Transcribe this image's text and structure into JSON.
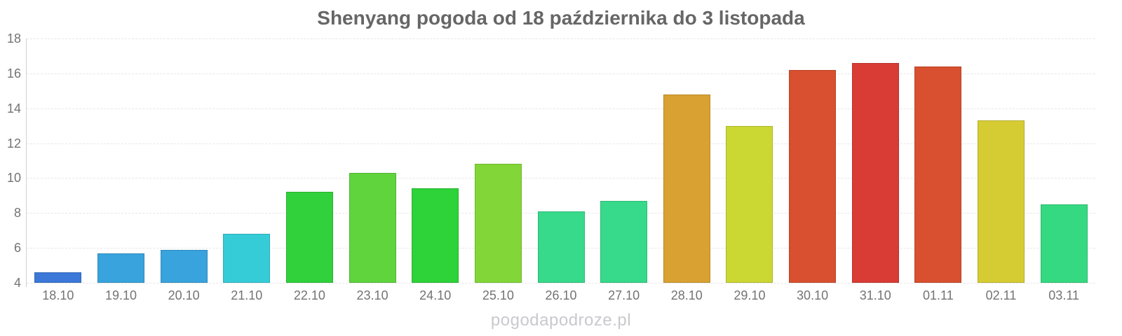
{
  "title": "Shenyang pogoda od 18 października do 3 listopada",
  "watermark": "pogodapodroze.pl",
  "chart_data": {
    "type": "bar",
    "title": "Shenyang pogoda od 18 października do 3 listopada",
    "xlabel": "",
    "ylabel": "",
    "categories": [
      "18.10",
      "19.10",
      "20.10",
      "21.10",
      "22.10",
      "23.10",
      "24.10",
      "25.10",
      "26.10",
      "27.10",
      "28.10",
      "29.10",
      "30.10",
      "31.10",
      "01.11",
      "02.11",
      "03.11"
    ],
    "values": [
      4.6,
      5.7,
      5.9,
      6.8,
      9.2,
      10.3,
      9.4,
      10.8,
      8.1,
      8.7,
      14.8,
      13.0,
      16.2,
      16.6,
      16.4,
      13.3,
      8.5
    ],
    "bar_colors": [
      "#3b78d8",
      "#38a3dc",
      "#38a3dc",
      "#35ccd8",
      "#31d13b",
      "#5fd43c",
      "#2ed239",
      "#82d637",
      "#37d98a",
      "#37d98a",
      "#d9a132",
      "#cbd733",
      "#d8502f",
      "#d93b35",
      "#d8502f",
      "#d5cc33",
      "#35d981"
    ],
    "ylim": [
      4,
      18
    ],
    "yticks": [
      4,
      6,
      8,
      10,
      12,
      14,
      16,
      18
    ],
    "grid": true,
    "legend": "none"
  },
  "ui_colors": {
    "title_text": "#666666",
    "axis_label_text": "#737373",
    "gridline": "#e6e6e6",
    "axis_line": "#d2d2d2",
    "watermark_text": "#c9c9ce",
    "background": "#ffffff"
  }
}
